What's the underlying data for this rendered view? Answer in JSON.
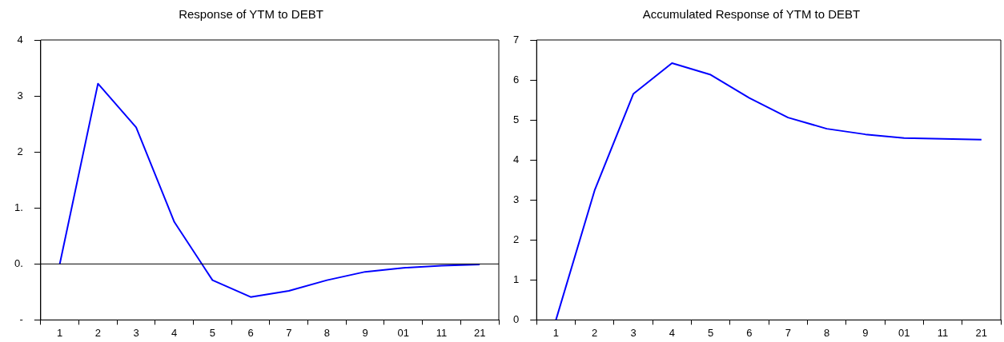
{
  "chart_data": [
    {
      "type": "line",
      "title": "Response of YTM to DEBT",
      "categories": [
        "1",
        "2",
        "3",
        "4",
        "5",
        "6",
        "7",
        "8",
        "9",
        "01",
        "11",
        "21"
      ],
      "series": [
        {
          "color": "#0000ff",
          "values": [
            0,
            3.22,
            2.44,
            0.75,
            -0.29,
            -0.59,
            -0.48,
            -0.29,
            -0.14,
            -0.07,
            -0.03,
            -0.01
          ]
        }
      ],
      "ylim": [
        -1,
        4
      ],
      "yticks": [
        {
          "value": -1,
          "label": "-"
        },
        {
          "value": 0,
          "label": "0."
        },
        {
          "value": 1,
          "label": "1."
        },
        2,
        3,
        4
      ],
      "ref_lines": [
        {
          "axis": "y",
          "value": 0,
          "color": "#000000"
        }
      ],
      "grid": false,
      "legend": false,
      "marker": "none"
    },
    {
      "type": "line",
      "title": "Accumulated Response of YTM to DEBT",
      "categories": [
        "1",
        "2",
        "3",
        "4",
        "5",
        "6",
        "7",
        "8",
        "9",
        "01",
        "11",
        "21"
      ],
      "series": [
        {
          "color": "#0000ff",
          "values": [
            0,
            3.24,
            5.65,
            6.42,
            6.13,
            5.55,
            5.06,
            4.78,
            4.64,
            4.55,
            4.53,
            4.51
          ]
        }
      ],
      "ylim": [
        0,
        7
      ],
      "yticks": [
        0,
        1,
        2,
        3,
        4,
        5,
        6,
        7
      ],
      "grid": false,
      "legend": false,
      "marker": "none"
    }
  ]
}
